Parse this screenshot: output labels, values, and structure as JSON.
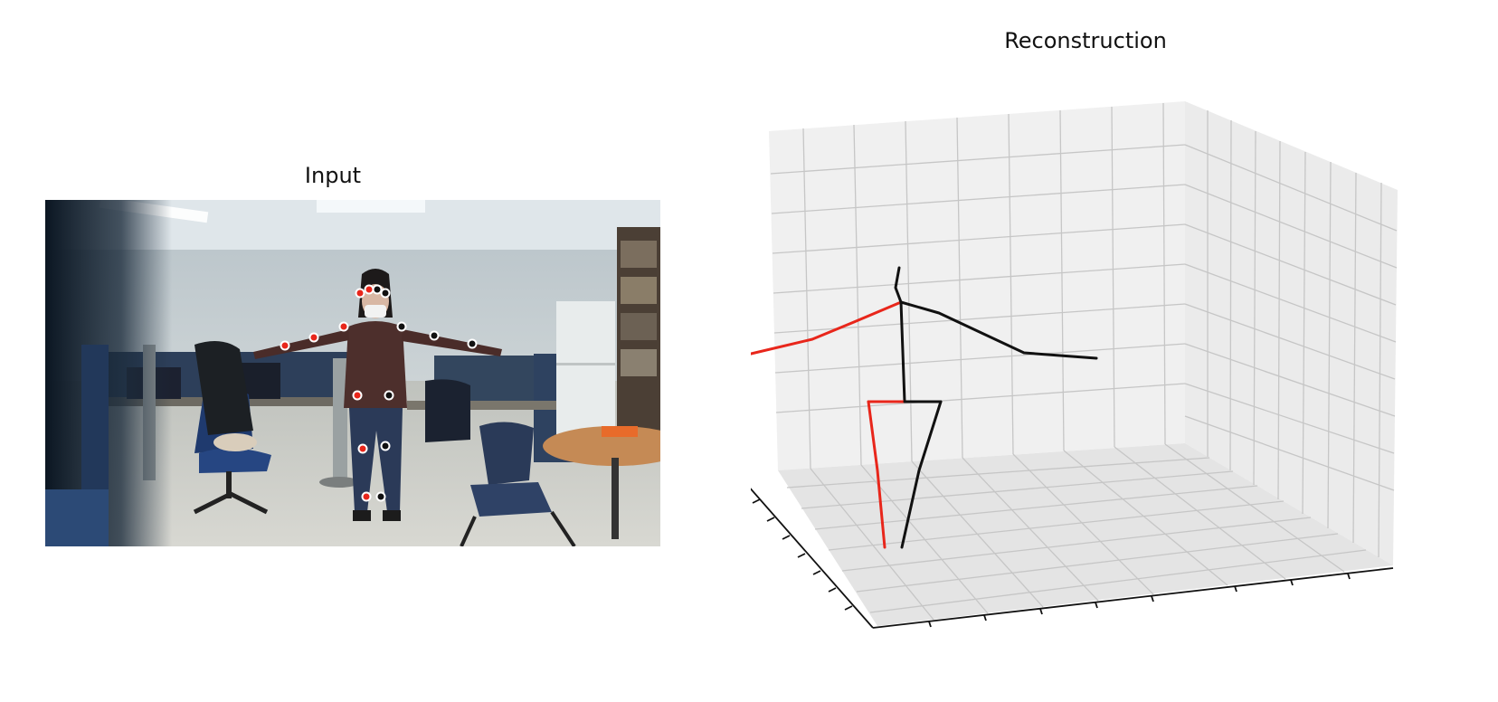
{
  "panels": {
    "input": {
      "title": "Input"
    },
    "reconstruction": {
      "title": "Reconstruction"
    }
  },
  "colors": {
    "right_side": "#e8261b",
    "left_side": "#111111",
    "pane": "#f2f2f2",
    "grid": "#c8c8c8"
  },
  "keypoints_2d": {
    "right_side_joints": [
      "eye",
      "ear",
      "shoulder",
      "elbow",
      "wrist",
      "hip",
      "knee",
      "ankle"
    ],
    "left_side_joints": [
      "eye",
      "ear",
      "shoulder",
      "elbow",
      "wrist",
      "hip",
      "knee",
      "ankle"
    ]
  },
  "skeleton_3d": {
    "right_limbs": [
      "right-arm",
      "right-leg",
      "right-hip-bone"
    ],
    "left_limbs": [
      "left-arm",
      "left-leg",
      "left-hip-bone",
      "spine",
      "neck-head"
    ]
  }
}
